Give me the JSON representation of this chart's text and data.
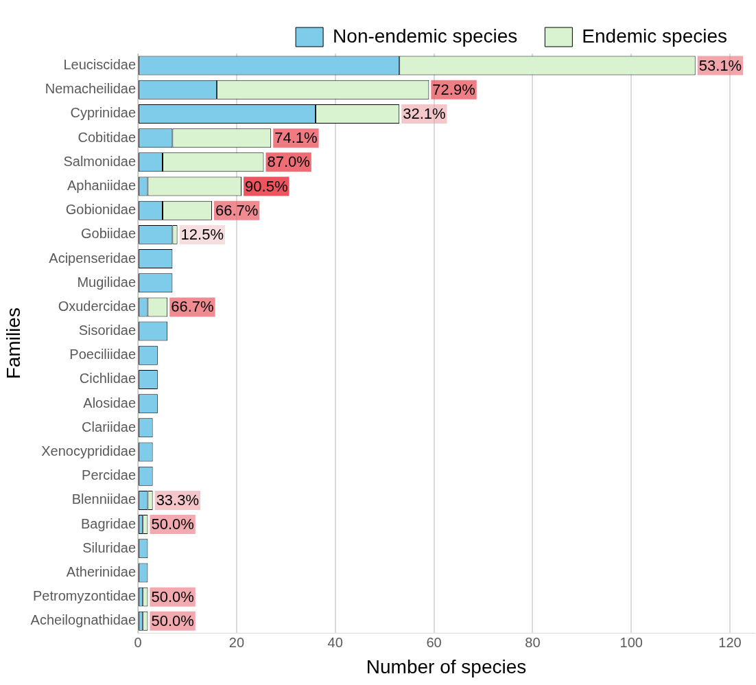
{
  "chart_data": {
    "type": "bar",
    "orientation": "horizontal",
    "stacked": true,
    "xlabel": "Number of species",
    "ylabel": "Families",
    "categories": [
      "Leuciscidae",
      "Nemacheilidae",
      "Cyprinidae",
      "Cobitidae",
      "Salmonidae",
      "Aphaniidae",
      "Gobionidae",
      "Gobiidae",
      "Acipenseridae",
      "Mugilidae",
      "Oxudercidae",
      "Sisoridae",
      "Poeciliidae",
      "Cichlidae",
      "Alosidae",
      "Clariidae",
      "Xenocyprididae",
      "Percidae",
      "Blenniidae",
      "Bagridae",
      "Siluridae",
      "Atherinidae",
      "Petromyzontidae",
      "Acheilognathidae"
    ],
    "series": [
      {
        "name": "Non-endemic species",
        "color": "#7ecbea",
        "values": [
          53,
          16,
          36,
          7,
          5,
          2,
          5,
          7,
          7,
          7,
          2,
          6,
          4,
          4,
          4,
          3,
          3,
          3,
          2,
          1,
          2,
          2,
          1,
          1
        ]
      },
      {
        "name": "Endemic species",
        "color": "#d9f2d0",
        "values": [
          60,
          43,
          17,
          20,
          20.5,
          19,
          10,
          1,
          null,
          null,
          4,
          null,
          null,
          null,
          null,
          null,
          null,
          null,
          1,
          1,
          null,
          null,
          1,
          1
        ]
      }
    ],
    "annotations": [
      {
        "text": "53.1%",
        "x": 113,
        "y": "Leuciscidae"
      },
      {
        "text": "72.9%",
        "x": 59,
        "y": "Nemacheilidae"
      },
      {
        "text": "32.1%",
        "x": 53,
        "y": "Cyprinidae"
      },
      {
        "text": "74.1%",
        "x": 27,
        "y": "Cobitidae"
      },
      {
        "text": "87.0%",
        "x": 25.5,
        "y": "Salmonidae"
      },
      {
        "text": "90.5%",
        "x": 21,
        "y": "Aphaniidae"
      },
      {
        "text": "66.7%",
        "x": 15,
        "y": "Gobionidae"
      },
      {
        "text": "12.5%",
        "x": 8,
        "y": "Gobiidae"
      },
      {
        "text": "66.7%",
        "x": 6,
        "y": "Oxudercidae"
      },
      {
        "text": "33.3%",
        "x": 3,
        "y": "Blenniidae"
      },
      {
        "text": "50.0%",
        "x": 2,
        "y": "Bagridae"
      },
      {
        "text": "50.0%",
        "x": 2,
        "y": "Petromyzontidae"
      },
      {
        "text": "50.0%",
        "x": 2,
        "y": "Acheilognathidae"
      }
    ],
    "xlim": [
      0,
      125
    ],
    "xticks": [
      0,
      20,
      40,
      60,
      80,
      100,
      120
    ],
    "grid": "x",
    "legend": "top"
  }
}
